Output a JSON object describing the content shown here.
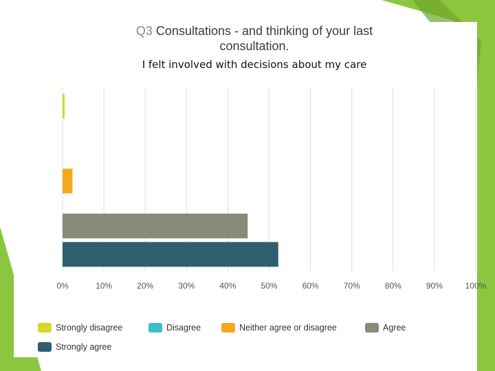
{
  "title": {
    "question_number": "Q3",
    "text_line1": "Consultations - and thinking of your last",
    "text_line2": "consultation."
  },
  "subtitle": "I felt involved with decisions about my care",
  "colors": {
    "slide_green": "#8cc63f",
    "slide_green_dark": "#6da52c",
    "grid": "#dcdcdc",
    "plot_bg": "#ffffff"
  },
  "chart_data": {
    "type": "bar",
    "orientation": "horizontal",
    "title": "Q3 Consultations - and thinking of your last consultation.",
    "subtitle": "I felt involved with decisions about my care",
    "xlim": [
      0,
      100
    ],
    "x_unit": "%",
    "ticks": [
      "0%",
      "10%",
      "20%",
      "30%",
      "40%",
      "50%",
      "60%",
      "70%",
      "80%",
      "90%",
      "100%"
    ],
    "tick_values": [
      0,
      10,
      20,
      30,
      40,
      50,
      60,
      70,
      80,
      90,
      100
    ],
    "grid": true,
    "legend_position": "bottom",
    "series": [
      {
        "name": "Strongly disagree",
        "value": 0.5,
        "color": "#d4d82a"
      },
      {
        "name": "Disagree",
        "value": 0,
        "color": "#3bbfc4"
      },
      {
        "name": "Neither agree or disagree",
        "value": 2.4,
        "color": "#f2a91c"
      },
      {
        "name": "Agree",
        "value": 44.8,
        "color": "#8a8a78"
      },
      {
        "name": "Strongly agree",
        "value": 52.2,
        "color": "#2e5f6e"
      }
    ]
  }
}
